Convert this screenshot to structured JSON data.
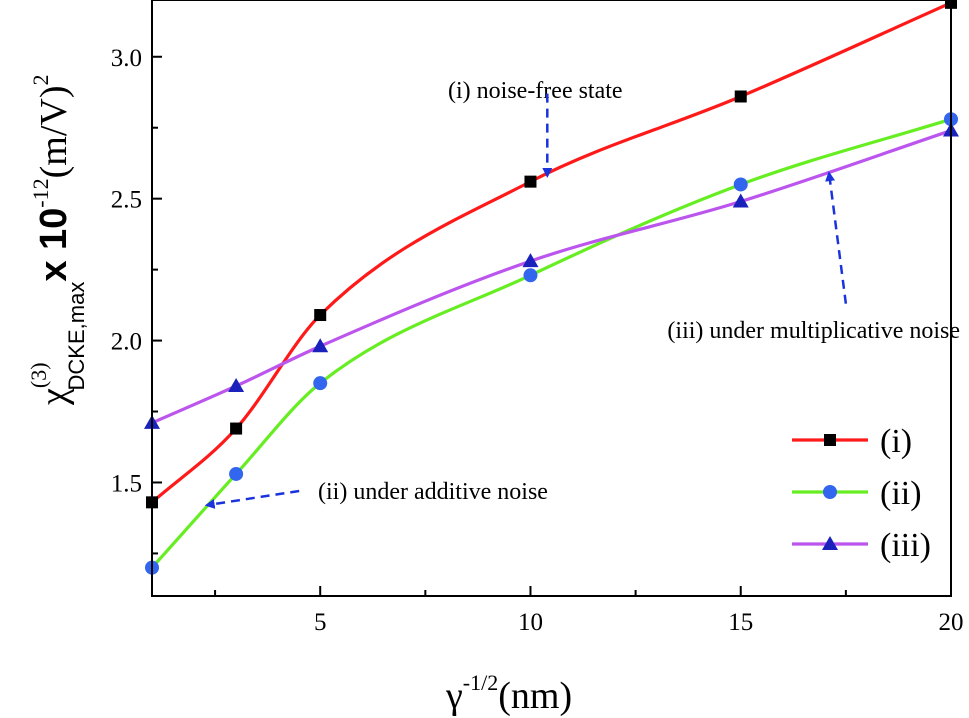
{
  "chart_data": {
    "type": "line",
    "xlim": [
      1,
      20
    ],
    "ylim": [
      1.1,
      3.2
    ],
    "x_ticks": [
      {
        "value": 5,
        "label": "5"
      },
      {
        "value": 10,
        "label": "10"
      },
      {
        "value": 15,
        "label": "15"
      },
      {
        "value": 20,
        "label": "20"
      }
    ],
    "x_minor_ticks": [
      2.5,
      7.5,
      12.5,
      17.5
    ],
    "y_ticks": [
      {
        "value": 1.5,
        "label": "1.5"
      },
      {
        "value": 2.0,
        "label": "2.0"
      },
      {
        "value": 2.5,
        "label": "2.5"
      },
      {
        "value": 3.0,
        "label": "3.0"
      }
    ],
    "y_minor_ticks": [
      1.25,
      1.75,
      2.25,
      2.75
    ],
    "xlabel": {
      "symbol": "γ",
      "superscript": "-1/2",
      "unit": "(nm)"
    },
    "ylabel": {
      "symbol": "χ",
      "superscript": "(3)",
      "subscript": "DCKE,max",
      "multiplier": "x 10",
      "exponent": "-12",
      "unit": "(m/V)",
      "unit_power": "2"
    },
    "grid": false,
    "legend_position": "bottom-right",
    "series": [
      {
        "name": "(i)",
        "color": "#ff1a1a",
        "marker": "square",
        "marker_color": "#000000",
        "x": [
          1,
          3,
          5,
          10,
          15,
          20
        ],
        "y": [
          1.43,
          1.69,
          2.09,
          2.56,
          2.86,
          3.19
        ]
      },
      {
        "name": "(ii)",
        "color": "#66ee22",
        "marker": "circle",
        "marker_color": "#3366ee",
        "x": [
          1,
          3,
          5,
          10,
          15,
          20
        ],
        "y": [
          1.2,
          1.53,
          1.85,
          2.23,
          2.55,
          2.78
        ]
      },
      {
        "name": "(iii)",
        "color": "#bb55ee",
        "marker": "triangle",
        "marker_color": "#1a22bb",
        "x": [
          1,
          3,
          5,
          10,
          15,
          20
        ],
        "y": [
          1.71,
          1.84,
          1.98,
          2.28,
          2.49,
          2.74
        ]
      }
    ],
    "annotations": [
      {
        "text": "(i) noise-free state",
        "arrow_from": [
          10.4,
          2.87
        ],
        "arrow_to": [
          10.4,
          2.58
        ]
      },
      {
        "text": "(ii) under additive noise",
        "arrow_from": [
          4.5,
          1.47
        ],
        "arrow_to": [
          2.3,
          1.42
        ]
      },
      {
        "text": "(iii) under multiplicative noise",
        "arrow_from": [
          17.5,
          2.13
        ],
        "arrow_to": [
          17.1,
          2.59
        ]
      }
    ]
  }
}
